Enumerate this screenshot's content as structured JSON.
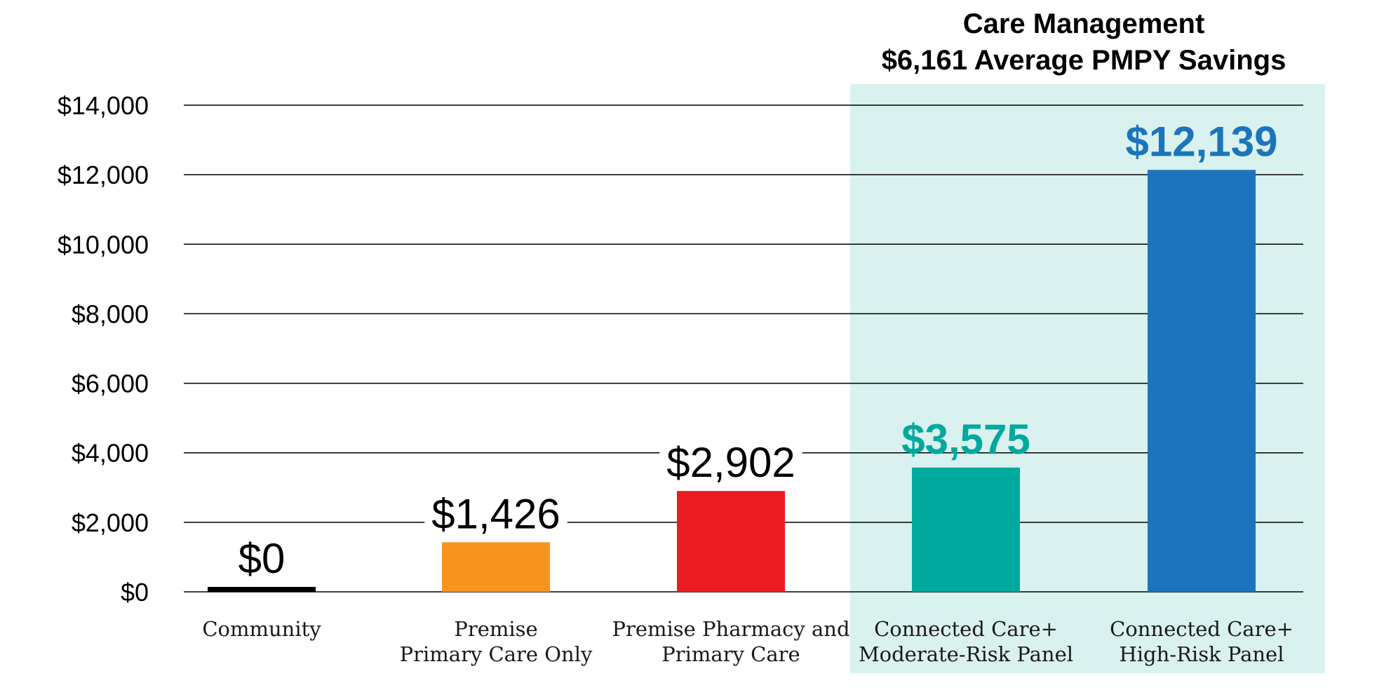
{
  "chart_data": {
    "type": "bar",
    "title": "",
    "xlabel": "",
    "ylabel": "",
    "ylim": [
      0,
      14000
    ],
    "y_ticks": [
      "$0",
      "$2,000",
      "$4,000",
      "$6,000",
      "$8,000",
      "$10,000",
      "$12,000",
      "$14,000"
    ],
    "grid": true,
    "categories": [
      [
        "Community"
      ],
      [
        "Premise",
        "Primary Care Only"
      ],
      [
        "Premise Pharmacy and",
        "Primary Care"
      ],
      [
        "Connected Care+",
        "Moderate-Risk Panel"
      ],
      [
        "Connected Care+",
        "High-Risk Panel"
      ]
    ],
    "values": [
      0,
      1426,
      2902,
      3575,
      12139
    ],
    "value_labels": [
      "$0",
      "$1,426",
      "$2,902",
      "$3,575",
      "$12,139"
    ],
    "colors": [
      "#000000",
      "#f7941d",
      "#ed1c24",
      "#00a99d",
      "#1c75bc"
    ],
    "value_label_colors": [
      "#000000",
      "#000000",
      "#000000",
      "#00a99d",
      "#1c75bc"
    ],
    "value_label_bold": [
      false,
      false,
      false,
      true,
      true
    ],
    "highlight": {
      "title_lines": [
        "Care Management",
        "$6,161 Average PMPY Savings"
      ],
      "categories": [
        3,
        4
      ],
      "color": "#d9f1ef"
    }
  }
}
